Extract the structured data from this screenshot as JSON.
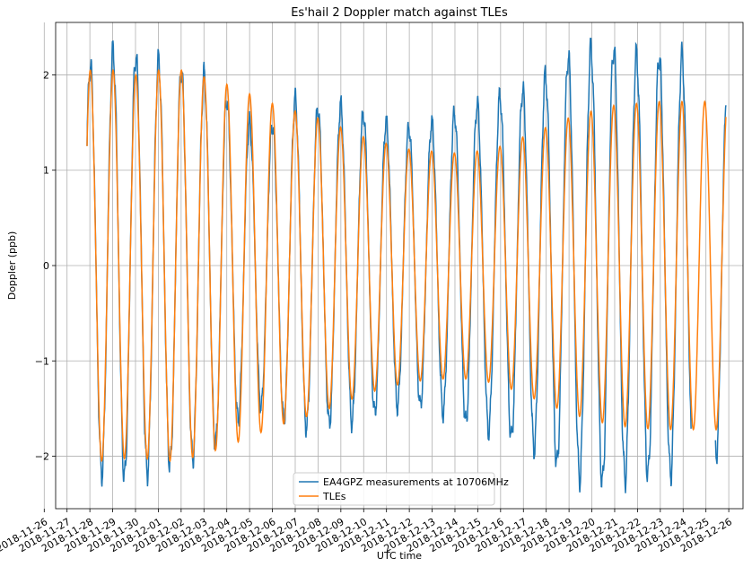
{
  "chart_data": {
    "type": "line",
    "title": "Es'hail 2 Doppler match against TLEs",
    "xlabel": "UTC time",
    "ylabel": "Doppler (ppb)",
    "x_type": "date",
    "xlim": [
      "2018-11-26T12:00",
      "2018-12-26T15:00"
    ],
    "ylim": [
      -2.55,
      2.55
    ],
    "grid": true,
    "legend_position": "bottom-center",
    "xticks": [
      "2018-11-26",
      "2018-11-27",
      "2018-11-28",
      "2018-11-29",
      "2018-11-30",
      "2018-12-01",
      "2018-12-02",
      "2018-12-03",
      "2018-12-04",
      "2018-12-05",
      "2018-12-06",
      "2018-12-07",
      "2018-12-08",
      "2018-12-09",
      "2018-12-10",
      "2018-12-11",
      "2018-12-12",
      "2018-12-13",
      "2018-12-14",
      "2018-12-15",
      "2018-12-16",
      "2018-12-17",
      "2018-12-18",
      "2018-12-19",
      "2018-12-20",
      "2018-12-21",
      "2018-12-22",
      "2018-12-23",
      "2018-12-24",
      "2018-12-25",
      "2018-12-26"
    ],
    "yticks": [
      -2,
      -1,
      0,
      1,
      2
    ],
    "series": [
      {
        "name": "EA4GPZ measurements at 10706MHz",
        "color": "#1f77b4",
        "segments": [
          {
            "x_start": "2018-11-27T21:00",
            "x_end": "2018-12-24T08:30",
            "amplitude": [
              [
                0,
                2.1
              ],
              [
                1,
                2.25
              ],
              [
                2,
                2.2
              ],
              [
                3,
                2.15
              ],
              [
                4,
                2.05
              ],
              [
                5,
                2.0
              ],
              [
                6,
                1.75
              ],
              [
                7,
                1.5
              ],
              [
                8,
                1.47
              ],
              [
                9,
                1.75
              ],
              [
                10,
                1.65
              ],
              [
                11,
                1.68
              ],
              [
                12,
                1.6
              ],
              [
                13,
                1.5
              ],
              [
                14,
                1.45
              ],
              [
                15,
                1.5
              ],
              [
                16,
                1.6
              ],
              [
                17,
                1.7
              ],
              [
                18,
                1.78
              ],
              [
                19,
                1.85
              ],
              [
                20,
                2.0
              ],
              [
                21,
                2.2
              ],
              [
                22,
                2.28
              ],
              [
                23,
                2.28
              ],
              [
                24,
                2.2
              ]
            ]
          },
          {
            "x_start": "2018-12-25T10:00",
            "x_end": "2018-12-25T21:00",
            "amplitude": [
              [
                0,
                2.1
              ],
              [
                1,
                2.0
              ]
            ]
          }
        ]
      },
      {
        "name": "TLEs",
        "color": "#ff7f0e",
        "segments": [
          {
            "x_start": "2018-11-27T21:00",
            "x_end": "2018-12-25T21:00",
            "amplitude": [
              [
                0,
                2.05
              ],
              [
                1,
                2.05
              ],
              [
                2,
                2.0
              ],
              [
                3,
                2.05
              ],
              [
                4,
                2.05
              ],
              [
                5,
                1.98
              ],
              [
                6,
                1.9
              ],
              [
                7,
                1.8
              ],
              [
                8,
                1.7
              ],
              [
                9,
                1.62
              ],
              [
                10,
                1.55
              ],
              [
                11,
                1.45
              ],
              [
                12,
                1.35
              ],
              [
                13,
                1.28
              ],
              [
                14,
                1.22
              ],
              [
                15,
                1.2
              ],
              [
                16,
                1.18
              ],
              [
                17,
                1.2
              ],
              [
                18,
                1.25
              ],
              [
                19,
                1.35
              ],
              [
                20,
                1.45
              ],
              [
                21,
                1.55
              ],
              [
                22,
                1.62
              ],
              [
                23,
                1.68
              ],
              [
                24,
                1.7
              ],
              [
                25,
                1.72
              ]
            ]
          }
        ]
      }
    ]
  }
}
